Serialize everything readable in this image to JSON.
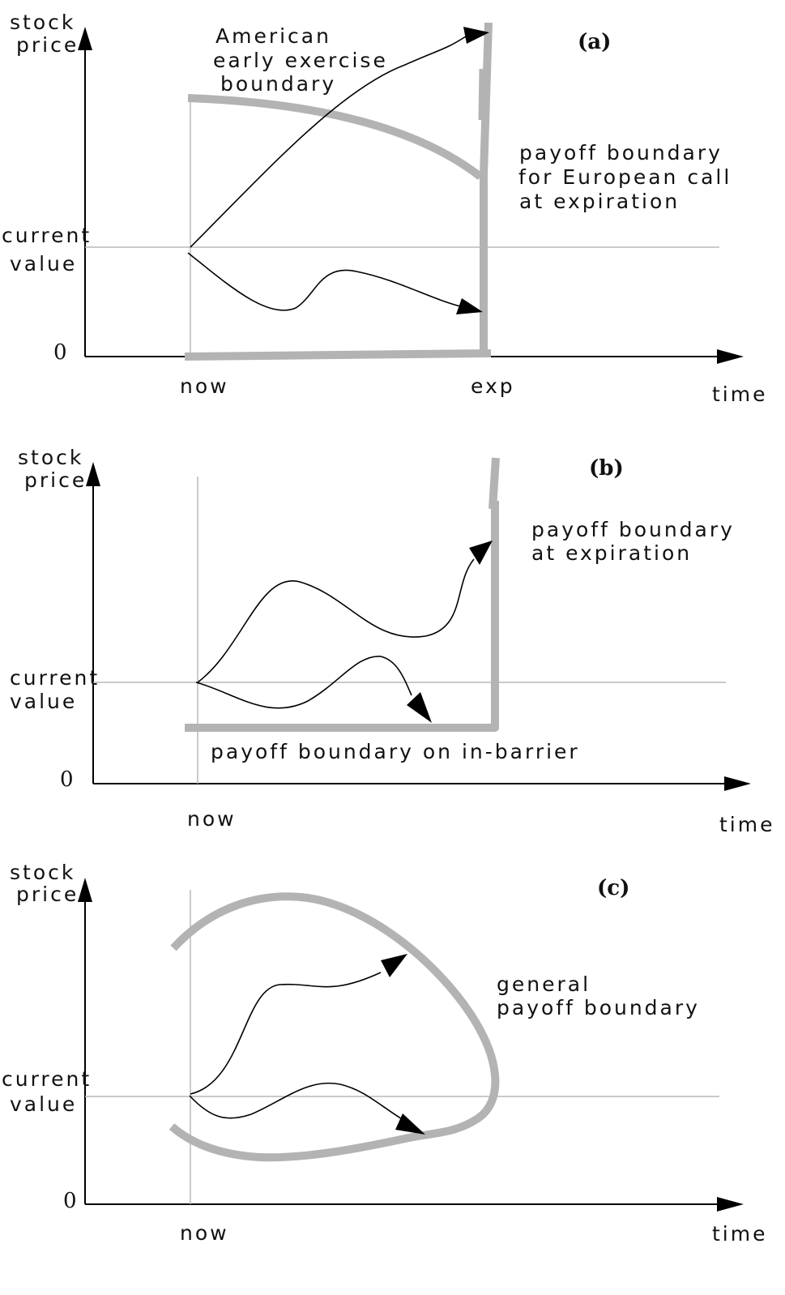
{
  "panels": [
    {
      "tag": "(a)",
      "y_axis_label": [
        "stock",
        "price"
      ],
      "x_axis_label": "time",
      "current_label": [
        "current",
        "value"
      ],
      "zero_label": "0",
      "now_label": "now",
      "exp_label": "exp",
      "annotation_1": [
        "American",
        "early exercise",
        "boundary"
      ],
      "annotation_2": [
        "payoff  boundary",
        "for European call",
        "at  expiration"
      ]
    },
    {
      "tag": "(b)",
      "y_axis_label": [
        "stock",
        "price"
      ],
      "x_axis_label": "time",
      "current_label": [
        "current",
        "value"
      ],
      "zero_label": "0",
      "now_label": "now",
      "annotation_1": [
        "payoff  boundary",
        "at expiration"
      ],
      "annotation_2": [
        "payoff  boundary  on in-barrier"
      ]
    },
    {
      "tag": "(c)",
      "y_axis_label": [
        "stock",
        "price"
      ],
      "x_axis_label": "time",
      "current_label": [
        "current",
        "value"
      ],
      "zero_label": "0",
      "now_label": "now",
      "annotation_1": [
        "general",
        "payoff  boundary"
      ]
    }
  ],
  "colors": {
    "boundary": "#b3b3b3",
    "guide_line": "#b8b8b8",
    "path": "#000000",
    "axis": "#000000"
  }
}
